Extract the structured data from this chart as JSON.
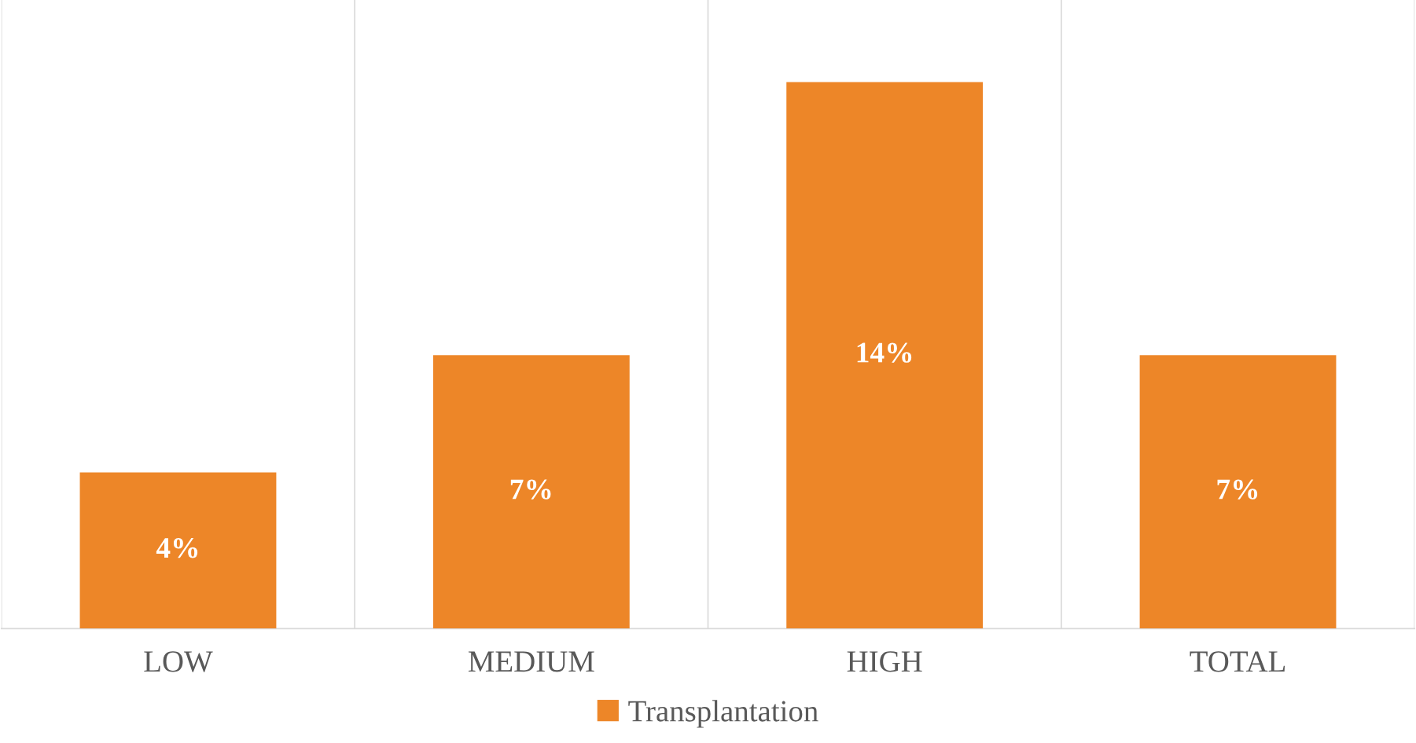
{
  "chart_data": {
    "type": "bar",
    "categories": [
      "LOW",
      "MEDIUM",
      "HIGH",
      "TOTAL"
    ],
    "series": [
      {
        "name": "Transplantation",
        "color": "#ed8628",
        "values": [
          4,
          7,
          14,
          7
        ],
        "value_labels": [
          "4%",
          "7%",
          "14%",
          "7%"
        ]
      }
    ],
    "grid": "x",
    "legend": "bottom"
  }
}
